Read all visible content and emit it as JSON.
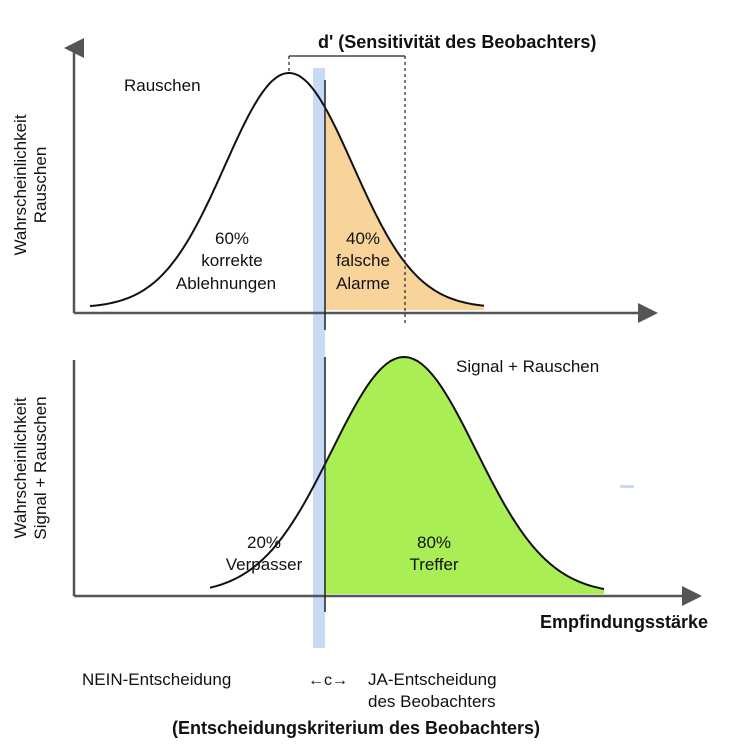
{
  "top_panel": {
    "y_axis_label_line1": "Wahrscheinlichkeit",
    "y_axis_label_line2": "Rauschen",
    "curve_label": "Rauschen",
    "d_prime_label": "d' (Sensitivität des Beobachters)",
    "left_region": {
      "percent": "60%",
      "line1": "korrekte",
      "line2": "Ablehnungen"
    },
    "right_region": {
      "percent": "40%",
      "line1": "falsche",
      "line2": "Alarme"
    }
  },
  "bottom_panel": {
    "y_axis_label_line1": "Wahrscheinlichkeit",
    "y_axis_label_line2": "Signal + Rauschen",
    "curve_label": "Signal + Rauschen",
    "left_region": {
      "percent": "20%",
      "line1": "Verpasser"
    },
    "right_region": {
      "percent": "80%",
      "line1": "Treffer"
    }
  },
  "x_axis_label": "Empfindungsstärke",
  "criterion": {
    "no_decision": "NEIN-Entscheidung",
    "c_label": "←c→",
    "yes_decision_line1": "JA-Entscheidung",
    "yes_decision_line2": "des Beobachters",
    "caption": "(Entscheidungskriterium des Beobachters)"
  },
  "colors": {
    "false_alarm_fill": "#f8d49a",
    "hit_fill": "#aaee55",
    "criterion_band": "#c7dbf7",
    "axis": "#555555"
  }
}
